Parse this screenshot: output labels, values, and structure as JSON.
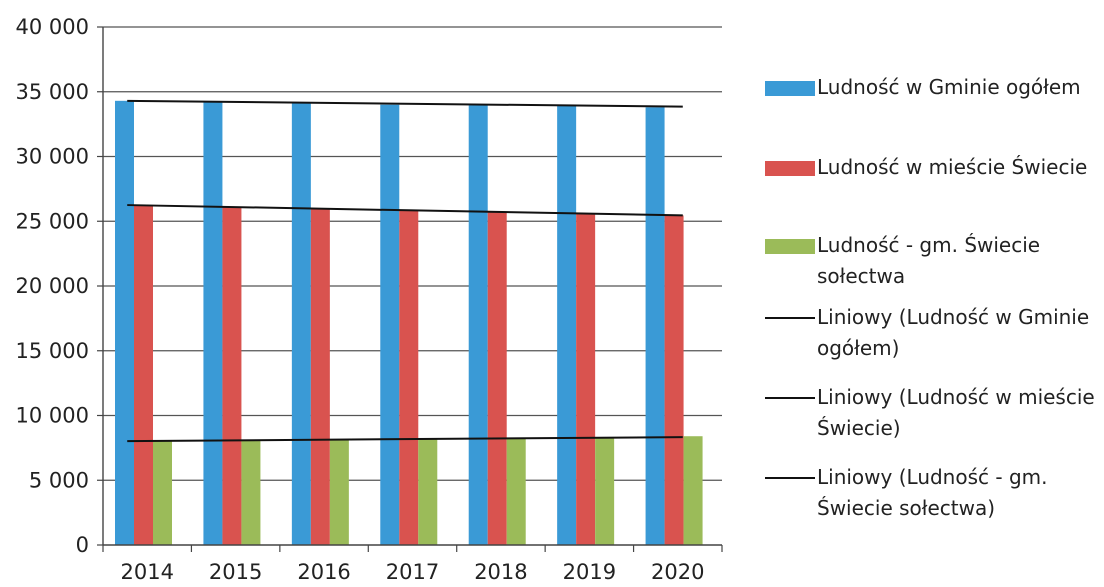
{
  "chart_data": {
    "type": "bar",
    "title": "",
    "xlabel": "",
    "ylabel": "",
    "categories": [
      "2014",
      "2015",
      "2016",
      "2017",
      "2018",
      "2019",
      "2020"
    ],
    "ylim": [
      0,
      40000
    ],
    "yticks": [
      0,
      5000,
      10000,
      15000,
      20000,
      25000,
      30000,
      35000,
      40000
    ],
    "ytick_labels": [
      "0",
      "5 000",
      "10 000",
      "15 000",
      "20 000",
      "25 000",
      "30 000",
      "35 000",
      "40 000"
    ],
    "grid": true,
    "legend_position": "right",
    "series": [
      {
        "name": "Ludność w Gminie ogółem",
        "color": "#3a9ad6",
        "values": [
          34300,
          34200,
          34100,
          34000,
          33950,
          33900,
          33800
        ]
      },
      {
        "name": "Ludność w mieście Świecie",
        "color": "#d9534f",
        "values": [
          26200,
          26100,
          25950,
          25850,
          25750,
          25600,
          25450
        ]
      },
      {
        "name": "Ludność - gm. Świecie sołectwa",
        "color": "#9bbb59",
        "values": [
          8050,
          8100,
          8150,
          8200,
          8250,
          8300,
          8400
        ]
      }
    ],
    "trendlines": [
      {
        "name": "Liniowy (Ludność w Gminie ogółem)",
        "color": "#111111",
        "start": 34300,
        "end": 33850
      },
      {
        "name": "Liniowy (Ludność w mieście Świecie)",
        "color": "#111111",
        "start": 26250,
        "end": 25450
      },
      {
        "name": "Liniowy (Ludność - gm. Świecie sołectwa)",
        "color": "#111111",
        "start": 8020,
        "end": 8330
      }
    ]
  }
}
